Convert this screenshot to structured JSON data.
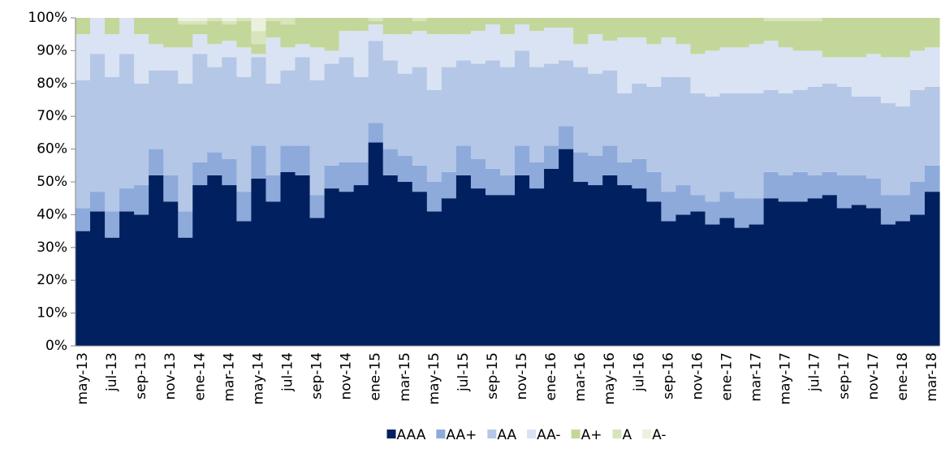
{
  "chart_data": {
    "type": "bar",
    "stacked": true,
    "categories": [
      "may-13",
      null,
      "jul-13",
      null,
      "sep-13",
      null,
      "nov-13",
      null,
      "ene-14",
      null,
      "mar-14",
      null,
      "may-14",
      null,
      "jul-14",
      null,
      "sep-14",
      null,
      "nov-14",
      null,
      "ene-15",
      null,
      "mar-15",
      null,
      "may-15",
      null,
      "jul-15",
      null,
      "sep-15",
      null,
      "nov-15",
      null,
      "ene-16",
      null,
      "mar-16",
      null,
      "may-16",
      null,
      "jul-16",
      null,
      "sep-16",
      null,
      "nov-16",
      null,
      "ene-17",
      null,
      "mar-17",
      null,
      "may-17",
      null,
      "jul-17",
      null,
      "sep-17",
      null,
      "nov-17",
      null,
      "ene-18",
      null,
      "mar-18"
    ],
    "series": [
      {
        "name": "AAA",
        "color": "#002060",
        "values": [
          35,
          41,
          33,
          41,
          40,
          52,
          44,
          33,
          49,
          52,
          49,
          38,
          51,
          44,
          53,
          52,
          39,
          48,
          47,
          49,
          62,
          52,
          50,
          47,
          41,
          45,
          52,
          48,
          46,
          46,
          52,
          48,
          54,
          60,
          50,
          49,
          52,
          49,
          48,
          44,
          38,
          40,
          41,
          37,
          39,
          36,
          37,
          45,
          44,
          44,
          45,
          46,
          42,
          43,
          42,
          37,
          38,
          40,
          47
        ]
      },
      {
        "name": "AA+",
        "color": "#8eaadb",
        "values": [
          7,
          6,
          8,
          7,
          9,
          8,
          8,
          8,
          7,
          7,
          8,
          9,
          10,
          8,
          8,
          9,
          7,
          7,
          9,
          7,
          6,
          8,
          8,
          8,
          9,
          8,
          9,
          9,
          8,
          6,
          9,
          8,
          7,
          7,
          9,
          9,
          9,
          7,
          9,
          9,
          9,
          9,
          5,
          7,
          8,
          9,
          8,
          8,
          8,
          9,
          7,
          7,
          10,
          9,
          9,
          9,
          8,
          10,
          8
        ]
      },
      {
        "name": "AA",
        "color": "#b4c7e7",
        "values": [
          39,
          42,
          41,
          41,
          31,
          24,
          32,
          39,
          33,
          26,
          31,
          35,
          27,
          28,
          23,
          27,
          35,
          31,
          32,
          26,
          25,
          27,
          25,
          30,
          28,
          32,
          26,
          29,
          33,
          33,
          29,
          29,
          25,
          20,
          26,
          25,
          23,
          21,
          23,
          26,
          35,
          33,
          31,
          32,
          30,
          32,
          32,
          25,
          25,
          25,
          27,
          27,
          27,
          24,
          25,
          28,
          27,
          28,
          24
        ]
      },
      {
        "name": "AA-",
        "color": "#dae3f3",
        "values": [
          14,
          11,
          13,
          11,
          15,
          8,
          7,
          11,
          6,
          7,
          5,
          9,
          1,
          14,
          7,
          4,
          10,
          4,
          8,
          14,
          5,
          8,
          12,
          11,
          17,
          10,
          8,
          10,
          11,
          10,
          8,
          11,
          11,
          10,
          7,
          12,
          9,
          17,
          14,
          13,
          12,
          10,
          12,
          14,
          14,
          14,
          15,
          15,
          14,
          12,
          11,
          8,
          9,
          12,
          13,
          14,
          15,
          12,
          12
        ]
      },
      {
        "name": "A+",
        "color": "#c4d79b",
        "values": [
          5,
          0,
          5,
          0,
          5,
          8,
          9,
          7,
          3,
          7,
          5,
          8,
          3,
          5,
          7,
          8,
          9,
          10,
          4,
          4,
          1,
          5,
          5,
          3,
          5,
          5,
          5,
          4,
          2,
          5,
          2,
          4,
          3,
          3,
          8,
          5,
          7,
          6,
          6,
          8,
          6,
          8,
          11,
          10,
          9,
          9,
          8,
          6,
          8,
          9,
          9,
          12,
          12,
          12,
          11,
          12,
          12,
          10,
          9
        ]
      },
      {
        "name": "A",
        "color": "#d8e4bc",
        "values": [
          0,
          0,
          0,
          0,
          0,
          0,
          0,
          1,
          1,
          1,
          1,
          1,
          4,
          1,
          2,
          0,
          0,
          0,
          0,
          0,
          1,
          0,
          0,
          1,
          0,
          0,
          0,
          0,
          0,
          0,
          0,
          0,
          0,
          0,
          0,
          0,
          0,
          0,
          0,
          0,
          0,
          0,
          0,
          0,
          0,
          0,
          0,
          1,
          1,
          1,
          1,
          0,
          0,
          0,
          0,
          0,
          0,
          0,
          0
        ]
      },
      {
        "name": "A-",
        "color": "#ebf1de",
        "values": [
          0,
          0,
          0,
          0,
          0,
          0,
          0,
          1,
          1,
          0,
          1,
          0,
          4,
          0,
          0,
          0,
          0,
          0,
          0,
          0,
          0,
          0,
          0,
          0,
          0,
          0,
          0,
          0,
          0,
          0,
          0,
          0,
          0,
          0,
          0,
          0,
          0,
          0,
          0,
          0,
          0,
          0,
          0,
          0,
          0,
          0,
          0,
          0,
          0,
          0,
          0,
          0,
          0,
          0,
          0,
          0,
          0,
          0,
          0
        ]
      }
    ],
    "ylim": [
      0,
      100
    ],
    "yticks": [
      {
        "value": 0,
        "label": "0%"
      },
      {
        "value": 10,
        "label": "10%"
      },
      {
        "value": 20,
        "label": "20%"
      },
      {
        "value": 30,
        "label": "30%"
      },
      {
        "value": 40,
        "label": "40%"
      },
      {
        "value": 50,
        "label": "50%"
      },
      {
        "value": 60,
        "label": "60%"
      },
      {
        "value": 70,
        "label": "70%"
      },
      {
        "value": 80,
        "label": "80%"
      },
      {
        "value": 90,
        "label": "90%"
      },
      {
        "value": 100,
        "label": "100%"
      }
    ],
    "legend": "bottom"
  }
}
